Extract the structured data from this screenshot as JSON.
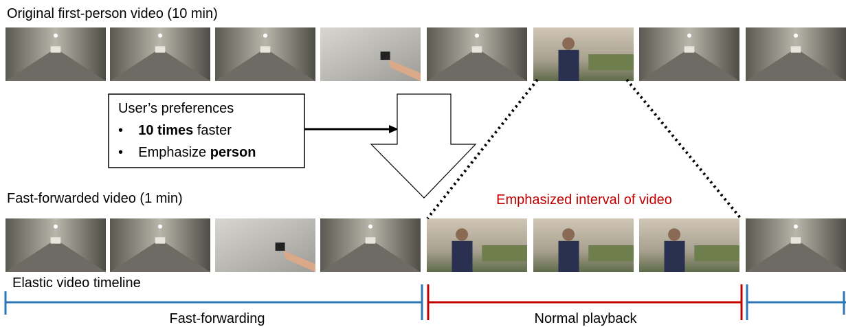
{
  "top_label": "Original first-person video (10 min)",
  "preferences": {
    "title": "User’s preferences",
    "items": [
      {
        "strong": "10 times",
        "rest": " faster"
      },
      {
        "lead": "Emphasize ",
        "strong": "person"
      }
    ]
  },
  "bottom_label": "Fast-forwarded video (1 min)",
  "emphasis_label": "Emphasized interval of video",
  "timeline": {
    "label": "Elastic video timeline",
    "fast": "Fast-forwarding",
    "normal": "Normal playback"
  }
}
